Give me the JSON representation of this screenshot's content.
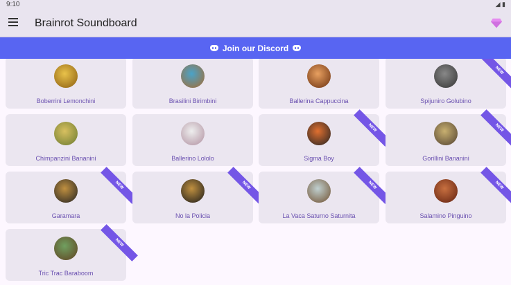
{
  "status": {
    "time": "9:10",
    "icons": "◢ ▮"
  },
  "app": {
    "title": "Brainrot Soundboard",
    "menu_icon": "hamburger-menu-icon",
    "premium_icon": "gem-icon",
    "accent": "#5865f2"
  },
  "banner": {
    "label": "Join our Discord"
  },
  "ribbon_label": "NEW",
  "sounds": [
    {
      "name": "Boberrini Lemonchini",
      "new": false,
      "colors": [
        "#e9c24a",
        "#8a5c10"
      ]
    },
    {
      "name": "Brasilini Birimbini",
      "new": false,
      "colors": [
        "#4aa3c8",
        "#a86a30"
      ]
    },
    {
      "name": "Ballerina Cappuccina",
      "new": false,
      "colors": [
        "#e8a060",
        "#6a3010"
      ]
    },
    {
      "name": "Spijuniro Golubino",
      "new": true,
      "colors": [
        "#888",
        "#333"
      ]
    },
    {
      "name": "Chimpanzini Bananini",
      "new": false,
      "colors": [
        "#d8c060",
        "#6a7a30"
      ]
    },
    {
      "name": "Ballerino Lololo",
      "new": false,
      "colors": [
        "#eee",
        "#b090a0"
      ]
    },
    {
      "name": "Sigma Boy",
      "new": true,
      "colors": [
        "#e07030",
        "#222"
      ]
    },
    {
      "name": "Gorillini Bananini",
      "new": true,
      "colors": [
        "#c8b070",
        "#504030"
      ]
    },
    {
      "name": "Garamara",
      "new": true,
      "colors": [
        "#c09040",
        "#222"
      ]
    },
    {
      "name": "No la Policia",
      "new": true,
      "colors": [
        "#c09040",
        "#1a1a1a"
      ]
    },
    {
      "name": "La Vaca Saturno Saturnita",
      "new": true,
      "colors": [
        "#c0d0d0",
        "#705030"
      ]
    },
    {
      "name": "Salamino Pinguino",
      "new": true,
      "colors": [
        "#c87040",
        "#602010"
      ]
    },
    {
      "name": "Tric Trac Baraboom",
      "new": true,
      "colors": [
        "#70a060",
        "#604020"
      ]
    }
  ]
}
